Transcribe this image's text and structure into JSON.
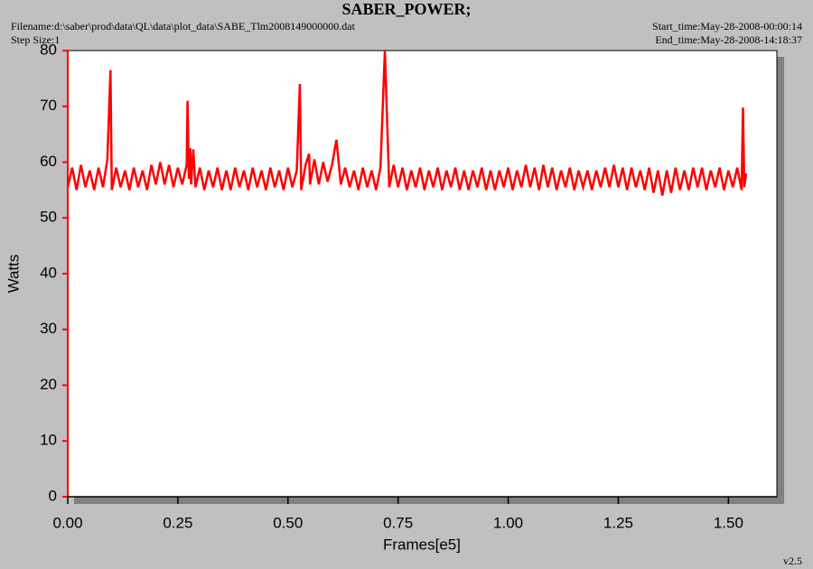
{
  "chart_data": {
    "type": "line",
    "title": "SABER_POWER;",
    "filename": "Filename:d:\\saber\\prod\\data\\QL\\data\\plot_data\\SABE_Tlm2008149000000.dat",
    "step_size": "Step Size:1",
    "start_time": "Start_time:May-28-2008-00:00:14",
    "end_time": "End_time:May-28-2008-14:18:37",
    "version": "v2.5",
    "xlabel": "Frames[e5]",
    "ylabel": "Watts",
    "color": "#ff0000",
    "xlim": [
      0,
      1.61
    ],
    "ylim": [
      0,
      80
    ],
    "xticks": [
      {
        "value": 0,
        "label": "0.00"
      },
      {
        "value": 0.25,
        "label": "0.25"
      },
      {
        "value": 0.5,
        "label": "0.50"
      },
      {
        "value": 0.75,
        "label": "0.75"
      },
      {
        "value": 1,
        "label": "1.00"
      },
      {
        "value": 1.25,
        "label": "1.25"
      },
      {
        "value": 1.5,
        "label": "1.50"
      }
    ],
    "yticks": [
      0,
      10,
      20,
      30,
      40,
      50,
      60,
      70,
      80
    ],
    "x": [
      0,
      0.01,
      0.02,
      0.03,
      0.04,
      0.05,
      0.06,
      0.07,
      0.08,
      0.09,
      0.097,
      0.1,
      0.11,
      0.12,
      0.13,
      0.14,
      0.15,
      0.16,
      0.17,
      0.18,
      0.19,
      0.2,
      0.21,
      0.22,
      0.23,
      0.24,
      0.25,
      0.26,
      0.27,
      0.272,
      0.275,
      0.278,
      0.28,
      0.285,
      0.29,
      0.3,
      0.31,
      0.32,
      0.33,
      0.34,
      0.35,
      0.36,
      0.37,
      0.38,
      0.39,
      0.4,
      0.41,
      0.42,
      0.43,
      0.44,
      0.45,
      0.46,
      0.47,
      0.48,
      0.49,
      0.5,
      0.51,
      0.52,
      0.527,
      0.53,
      0.54,
      0.548,
      0.55,
      0.56,
      0.57,
      0.58,
      0.59,
      0.6,
      0.61,
      0.62,
      0.63,
      0.64,
      0.65,
      0.66,
      0.67,
      0.68,
      0.69,
      0.7,
      0.71,
      0.72,
      0.73,
      0.74,
      0.75,
      0.76,
      0.77,
      0.78,
      0.79,
      0.8,
      0.81,
      0.82,
      0.83,
      0.84,
      0.85,
      0.86,
      0.87,
      0.88,
      0.89,
      0.9,
      0.91,
      0.92,
      0.93,
      0.94,
      0.95,
      0.96,
      0.97,
      0.98,
      0.99,
      1,
      1.01,
      1.02,
      1.03,
      1.04,
      1.05,
      1.06,
      1.07,
      1.08,
      1.09,
      1.1,
      1.11,
      1.12,
      1.13,
      1.14,
      1.15,
      1.16,
      1.17,
      1.18,
      1.19,
      1.2,
      1.21,
      1.22,
      1.23,
      1.24,
      1.25,
      1.26,
      1.27,
      1.28,
      1.29,
      1.3,
      1.31,
      1.32,
      1.33,
      1.34,
      1.35,
      1.36,
      1.37,
      1.38,
      1.39,
      1.4,
      1.41,
      1.42,
      1.43,
      1.44,
      1.45,
      1.46,
      1.47,
      1.48,
      1.49,
      1.5,
      1.51,
      1.52,
      1.53,
      1.533,
      1.536,
      1.54
    ],
    "values": [
      55.5,
      59,
      55,
      59.5,
      55.5,
      58.5,
      55,
      59,
      55.5,
      60.5,
      76.5,
      55,
      59,
      55.5,
      58.5,
      55,
      59,
      55.5,
      58.5,
      55,
      59.5,
      56,
      60,
      56,
      59.5,
      55.5,
      59,
      56,
      59.5,
      71,
      57,
      62.5,
      56,
      62.3,
      55.5,
      59,
      55,
      58.5,
      55.5,
      59,
      55,
      58.5,
      55,
      59,
      55.5,
      58.5,
      55,
      59,
      55.5,
      58.5,
      55,
      59,
      55.5,
      58.5,
      55,
      59,
      55.5,
      58.5,
      74,
      55,
      59.5,
      61.5,
      56,
      60.5,
      56,
      60,
      56.5,
      59.5,
      64,
      56,
      59,
      55.5,
      58.5,
      55,
      59,
      55.5,
      58.5,
      55,
      59,
      80,
      55.5,
      59.5,
      55.5,
      59,
      55,
      58.5,
      55.5,
      59,
      55,
      58.5,
      55.5,
      59,
      55,
      58.5,
      55.5,
      59,
      55,
      58.5,
      55,
      58.5,
      55.5,
      59,
      55,
      58.5,
      55,
      58.5,
      55.5,
      59,
      55,
      58.5,
      55.5,
      59.5,
      55.5,
      59,
      55,
      59.5,
      55.5,
      59,
      55,
      58.5,
      55.5,
      59,
      55,
      58.5,
      55.5,
      58.5,
      55,
      58.5,
      55.5,
      59,
      55.5,
      59.5,
      55.5,
      59,
      55,
      59,
      55.5,
      58.5,
      55,
      59,
      54.5,
      58.5,
      54,
      58.5,
      54.5,
      59,
      55,
      58.5,
      55,
      59,
      55.5,
      59,
      55,
      58.5,
      55.5,
      59,
      55,
      58.5,
      55.5,
      59,
      55,
      69.8,
      55.5,
      58
    ]
  }
}
